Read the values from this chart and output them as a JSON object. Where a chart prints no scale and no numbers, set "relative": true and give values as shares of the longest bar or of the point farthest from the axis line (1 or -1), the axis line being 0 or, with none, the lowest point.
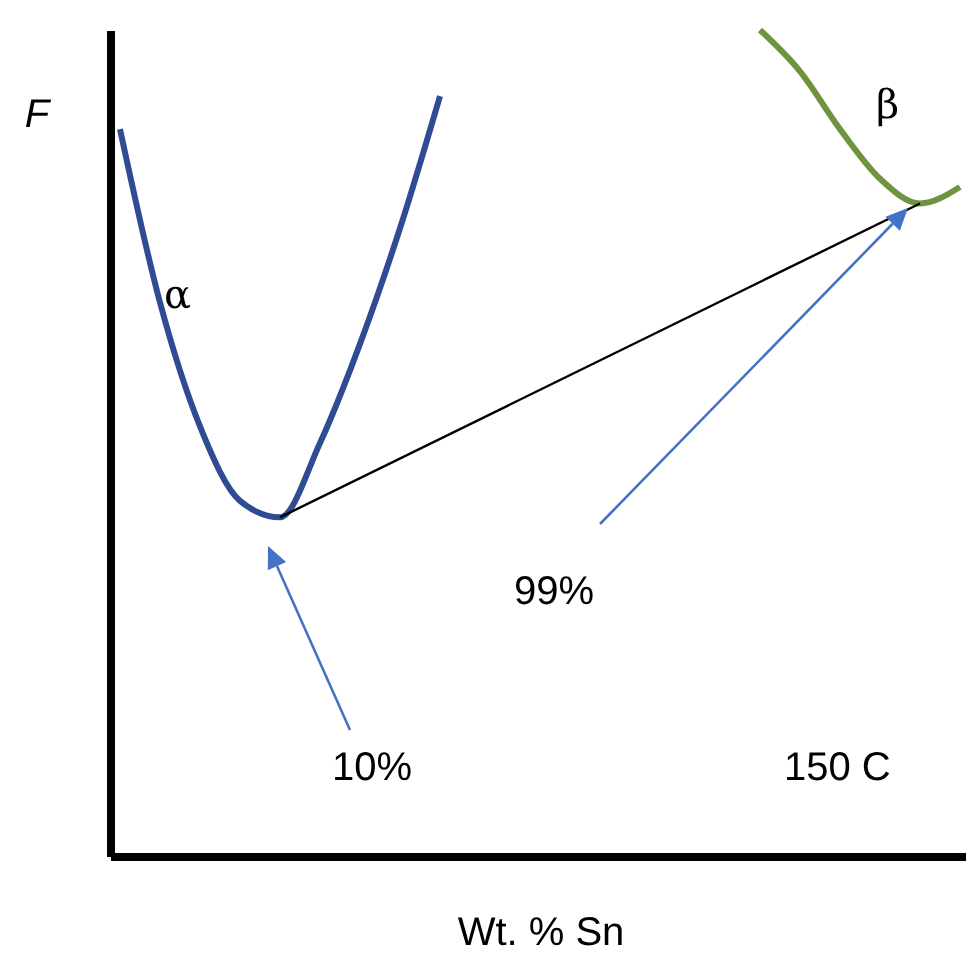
{
  "chart_data": {
    "type": "line",
    "relative": true,
    "xlabel": "Wt. % Sn",
    "ylabel": "F",
    "tick_labels": false,
    "grid": false,
    "marker": "none",
    "line_style": "solid",
    "categories": [
      null,
      null,
      null,
      null,
      null,
      null,
      null,
      null,
      null,
      null,
      null,
      null,
      null,
      null,
      null,
      null,
      null,
      null,
      null,
      null,
      null,
      null
    ],
    "series": [
      {
        "color": "#2f4b93",
        "values": [
          0.88,
          0.67,
          0.52,
          0.43,
          0.41,
          0.5,
          0.62,
          0.76,
          0.92,
          null,
          null,
          null,
          null,
          null,
          null,
          null,
          null,
          null,
          null,
          null,
          null,
          null
        ]
      },
      {
        "color": "#6f9440",
        "values": [
          null,
          null,
          null,
          null,
          null,
          null,
          null,
          null,
          null,
          null,
          null,
          null,
          null,
          null,
          null,
          null,
          1,
          0.95,
          0.88,
          0.82,
          0.79,
          0.81
        ]
      },
      {
        "color": "#000000",
        "values": [
          null,
          null,
          null,
          null,
          0.41,
          null,
          null,
          null,
          null,
          null,
          null,
          null,
          null,
          null,
          null,
          null,
          null,
          null,
          null,
          null,
          0.79,
          null
        ]
      }
    ],
    "annotations": [
      "α",
      "β",
      "10%",
      "99%",
      "150 C"
    ]
  }
}
